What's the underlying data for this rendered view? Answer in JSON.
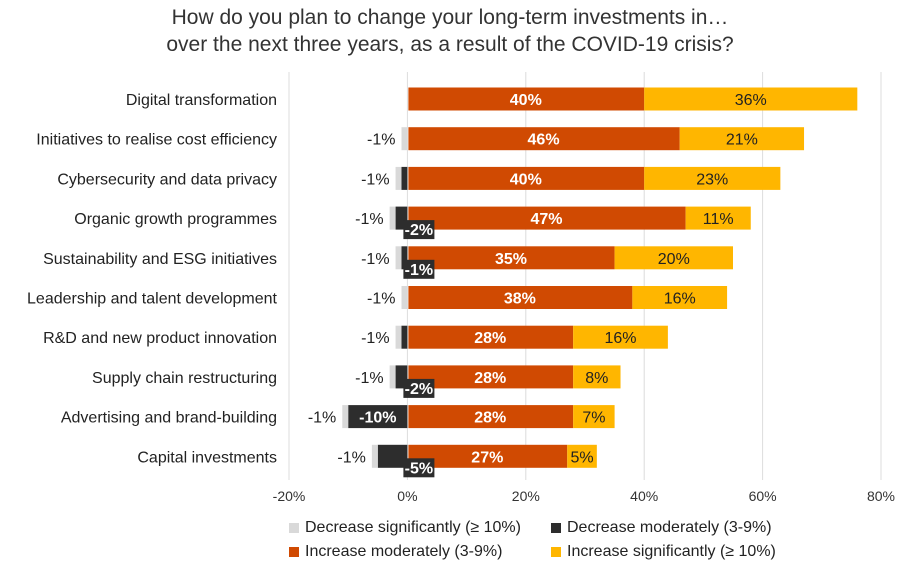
{
  "chart_data": {
    "type": "bar",
    "orientation": "horizontal",
    "stacked": true,
    "title": [
      "How do you plan to change your long-term investments in…",
      "over the next three years, as a result of the COVID-19 crisis?"
    ],
    "categories": [
      "Digital transformation",
      "Initiatives to realise cost efficiency",
      "Cybersecurity and data privacy",
      "Organic growth programmes",
      "Sustainability and ESG initiatives",
      "Leadership and talent development",
      "R&D and new product innovation",
      "Supply chain restructuring",
      "Advertising and brand-building",
      "Capital investments"
    ],
    "series": [
      {
        "name": "Decrease significantly (≥ 10%)",
        "color": "#d9d9d9",
        "values": [
          0,
          -1,
          -1,
          -1,
          -1,
          -1,
          -1,
          -1,
          -1,
          -1
        ],
        "labels": [
          "",
          "-1%",
          "-1%",
          "-1%",
          "-1%",
          "-1%",
          "-1%",
          "-1%",
          "-1%",
          "-1%"
        ]
      },
      {
        "name": "Decrease moderately (3-9%)",
        "color": "#2d2d2d",
        "values": [
          0,
          0,
          -1,
          -2,
          -1,
          0,
          -1,
          -2,
          -10,
          -5
        ],
        "labels": [
          "",
          "",
          "",
          "-2%",
          "-1%",
          "",
          "",
          "-2%",
          "-10%",
          "-5%"
        ]
      },
      {
        "name": "Increase moderately (3-9%)",
        "color": "#d04a02",
        "values": [
          40,
          46,
          40,
          47,
          35,
          38,
          28,
          28,
          28,
          27
        ],
        "labels": [
          "40%",
          "46%",
          "40%",
          "47%",
          "35%",
          "38%",
          "28%",
          "28%",
          "28%",
          "27%"
        ]
      },
      {
        "name": "Increase significantly (≥ 10%)",
        "color": "#ffb600",
        "values": [
          36,
          21,
          23,
          11,
          20,
          16,
          16,
          8,
          7,
          5
        ],
        "labels": [
          "36%",
          "21%",
          "23%",
          "11%",
          "20%",
          "16%",
          "16%",
          "8%",
          "7%",
          "5%"
        ]
      }
    ],
    "xlim": [
      -20,
      80
    ],
    "xticks": [
      -20,
      0,
      20,
      40,
      60,
      80
    ],
    "xtick_labels": [
      "-20%",
      "0%",
      "20%",
      "40%",
      "60%",
      "80%"
    ],
    "grid": true,
    "legend_position": "bottom"
  }
}
